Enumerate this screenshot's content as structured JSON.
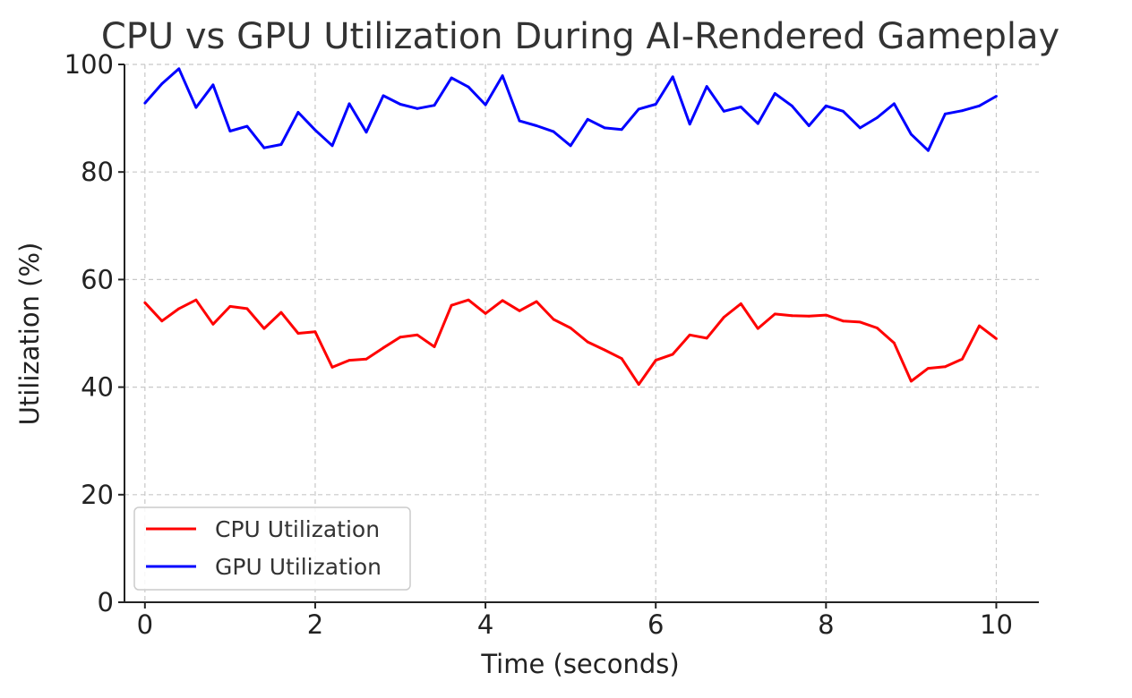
{
  "chart_data": {
    "type": "line",
    "title": "CPU vs GPU Utilization During AI-Rendered Gameplay",
    "xlabel": "Time (seconds)",
    "ylabel": "Utilization (%)",
    "xlim": [
      -0.24,
      10.5
    ],
    "ylim": [
      0,
      100
    ],
    "x_ticks": [
      0,
      2,
      4,
      6,
      8,
      10
    ],
    "y_ticks": [
      0,
      20,
      40,
      60,
      80,
      100
    ],
    "grid": true,
    "legend_position": "lower-left",
    "x": [
      0,
      0.2,
      0.4,
      0.6,
      0.8,
      1.0,
      1.2,
      1.4,
      1.6,
      1.8,
      2.0,
      2.2,
      2.4,
      2.6,
      2.8,
      3.0,
      3.2,
      3.4,
      3.6,
      3.8,
      4.0,
      4.2,
      4.4,
      4.6,
      4.8,
      5.0,
      5.2,
      5.4,
      5.6,
      5.8,
      6.0,
      6.2,
      6.4,
      6.6,
      6.8,
      7.0,
      7.2,
      7.4,
      7.6,
      7.8,
      8.0,
      8.2,
      8.4,
      8.6,
      8.8,
      9.0,
      9.2,
      9.4,
      9.6,
      9.8,
      10.0
    ],
    "series": [
      {
        "name": "CPU Utilization",
        "color": "#ff0000",
        "values": [
          55.7,
          52.3,
          54.6,
          56.2,
          51.7,
          55.0,
          54.6,
          50.9,
          53.9,
          50.0,
          50.3,
          43.7,
          45.0,
          45.2,
          47.3,
          49.3,
          49.7,
          47.5,
          55.2,
          56.2,
          53.7,
          56.1,
          54.2,
          55.9,
          52.6,
          51.0,
          48.4,
          46.9,
          45.3,
          40.5,
          45.0,
          46.1,
          49.7,
          49.1,
          53.0,
          55.5,
          50.9,
          53.6,
          53.3,
          53.2,
          53.4,
          52.3,
          52.1,
          51.0,
          48.2,
          41.1,
          43.5,
          43.8,
          45.2,
          51.4,
          49.0
        ]
      },
      {
        "name": "GPU Utilization",
        "color": "#0000ff",
        "values": [
          92.8,
          96.4,
          99.2,
          92.0,
          96.2,
          87.6,
          88.5,
          84.5,
          85.1,
          91.1,
          87.8,
          84.9,
          92.7,
          87.4,
          94.2,
          92.6,
          91.8,
          92.4,
          97.5,
          95.8,
          92.5,
          97.9,
          89.5,
          88.6,
          87.5,
          84.9,
          89.8,
          88.2,
          87.9,
          91.7,
          92.6,
          97.7,
          88.9,
          95.9,
          91.3,
          92.1,
          89.0,
          94.6,
          92.3,
          88.6,
          92.3,
          91.3,
          88.2,
          90.1,
          92.7,
          87.0,
          84.0,
          90.8,
          91.4,
          92.3,
          94.1
        ]
      }
    ]
  }
}
